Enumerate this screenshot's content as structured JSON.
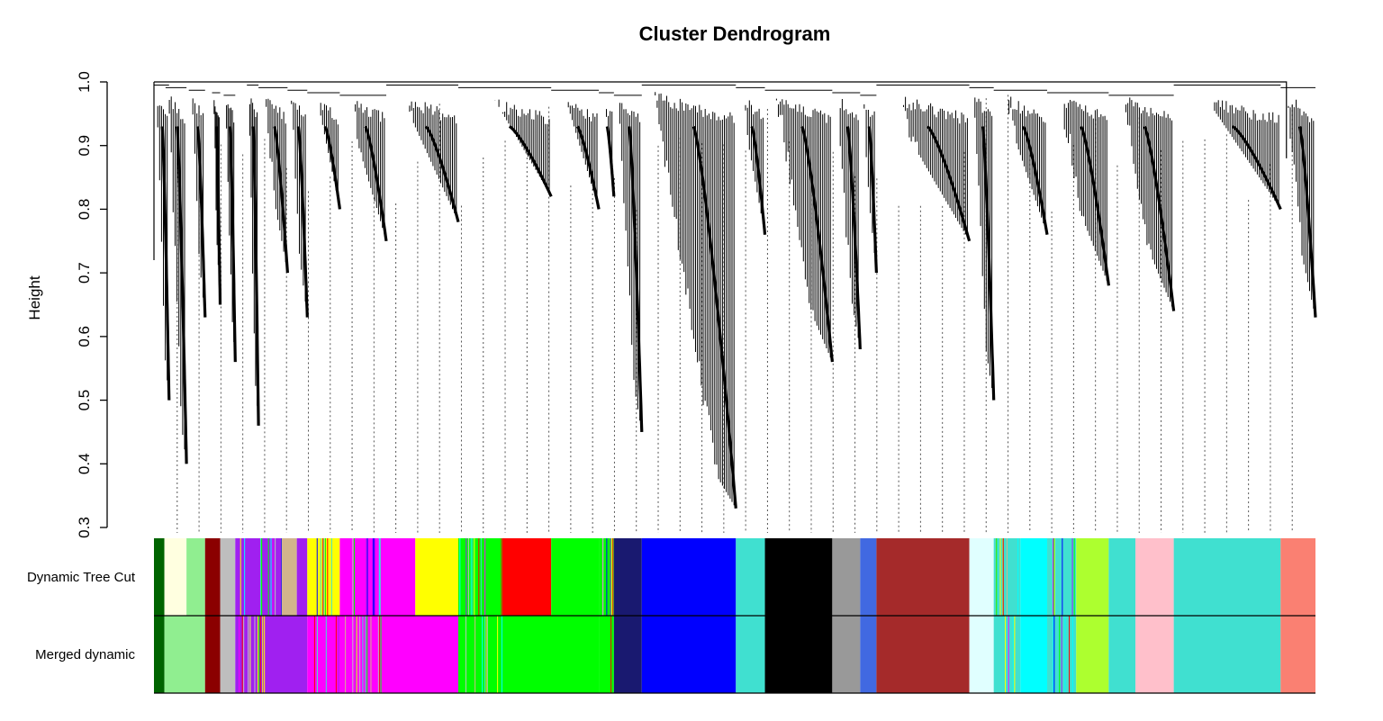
{
  "chart_data": {
    "type": "dendrogram",
    "title": "Cluster Dendrogram",
    "ylabel": "Height",
    "ylim": [
      0.3,
      1.0
    ],
    "yticks": [
      "0.3",
      "0.4",
      "0.5",
      "0.6",
      "0.7",
      "0.8",
      "0.9",
      "1.0"
    ],
    "yticks_values": [
      0.3,
      0.4,
      0.5,
      0.6,
      0.7,
      0.8,
      0.9,
      1.0
    ],
    "n_leaves": 1000,
    "color_rows": [
      {
        "label": "Dynamic Tree Cut",
        "blocks": [
          {
            "from": 0.0,
            "to": 0.9,
            "color": "#006400"
          },
          {
            "from": 0.9,
            "to": 1.3,
            "color": "#ffffe0"
          },
          {
            "from": 1.3,
            "to": 2.8,
            "color": "#ffffe0"
          },
          {
            "from": 2.8,
            "to": 4.4,
            "color": "#90ee90"
          },
          {
            "from": 4.4,
            "to": 5.7,
            "color": "#8b0000"
          },
          {
            "from": 5.7,
            "to": 7.0,
            "color": "#bebebe"
          },
          {
            "from": 7.0,
            "to": 11.0,
            "color": "#a020f0",
            "striped": true
          },
          {
            "from": 11.0,
            "to": 12.3,
            "color": "#d2b48c"
          },
          {
            "from": 12.3,
            "to": 13.2,
            "color": "#a020f0"
          },
          {
            "from": 13.2,
            "to": 16.0,
            "color": "#ffff00",
            "striped": true
          },
          {
            "from": 16.0,
            "to": 20.0,
            "color": "#ff00ff",
            "striped": true
          },
          {
            "from": 20.0,
            "to": 22.5,
            "color": "#ff00ff"
          },
          {
            "from": 22.5,
            "to": 26.2,
            "color": "#ffff00"
          },
          {
            "from": 26.2,
            "to": 30.0,
            "color": "#00ff00",
            "striped": true
          },
          {
            "from": 30.0,
            "to": 34.2,
            "color": "#ff0000"
          },
          {
            "from": 34.2,
            "to": 38.3,
            "color": "#00ff00"
          },
          {
            "from": 38.3,
            "to": 39.6,
            "color": "#00ff00",
            "striped": true
          },
          {
            "from": 39.6,
            "to": 42.0,
            "color": "#191970"
          },
          {
            "from": 42.0,
            "to": 50.1,
            "color": "#0000ff"
          },
          {
            "from": 50.1,
            "to": 52.6,
            "color": "#40e0d0"
          },
          {
            "from": 52.6,
            "to": 58.4,
            "color": "#000000"
          },
          {
            "from": 58.4,
            "to": 60.8,
            "color": "#999999"
          },
          {
            "from": 60.8,
            "to": 62.2,
            "color": "#4169e1"
          },
          {
            "from": 62.2,
            "to": 70.2,
            "color": "#a52a2a"
          },
          {
            "from": 70.2,
            "to": 72.3,
            "color": "#e0ffff"
          },
          {
            "from": 72.3,
            "to": 74.6,
            "color": "#40e0d0",
            "striped": true
          },
          {
            "from": 74.6,
            "to": 76.9,
            "color": "#00ffff"
          },
          {
            "from": 76.9,
            "to": 79.4,
            "color": "#40e0d0",
            "striped": true
          },
          {
            "from": 79.4,
            "to": 82.2,
            "color": "#adff2f"
          },
          {
            "from": 82.2,
            "to": 84.5,
            "color": "#40e0d0"
          },
          {
            "from": 84.5,
            "to": 87.8,
            "color": "#ffc0cb"
          },
          {
            "from": 87.8,
            "to": 97.0,
            "color": "#40e0d0"
          },
          {
            "from": 97.0,
            "to": 100.0,
            "color": "#fa8072"
          }
        ]
      },
      {
        "label": "Merged dynamic",
        "blocks": [
          {
            "from": 0.0,
            "to": 0.9,
            "color": "#006400"
          },
          {
            "from": 0.9,
            "to": 4.4,
            "color": "#90ee90"
          },
          {
            "from": 4.4,
            "to": 5.7,
            "color": "#8b0000"
          },
          {
            "from": 5.7,
            "to": 7.0,
            "color": "#bebebe"
          },
          {
            "from": 7.0,
            "to": 10.0,
            "color": "#a020f0",
            "striped": true
          },
          {
            "from": 10.0,
            "to": 13.2,
            "color": "#a020f0"
          },
          {
            "from": 13.2,
            "to": 20.0,
            "color": "#ff00ff",
            "striped": true
          },
          {
            "from": 20.0,
            "to": 26.2,
            "color": "#ff00ff"
          },
          {
            "from": 26.2,
            "to": 30.0,
            "color": "#00ff00",
            "striped": true
          },
          {
            "from": 30.0,
            "to": 38.3,
            "color": "#00ff00"
          },
          {
            "from": 38.3,
            "to": 39.6,
            "color": "#00ff00",
            "striped": true
          },
          {
            "from": 39.6,
            "to": 42.0,
            "color": "#191970"
          },
          {
            "from": 42.0,
            "to": 50.1,
            "color": "#0000ff"
          },
          {
            "from": 50.1,
            "to": 52.6,
            "color": "#40e0d0"
          },
          {
            "from": 52.6,
            "to": 58.4,
            "color": "#000000"
          },
          {
            "from": 58.4,
            "to": 60.8,
            "color": "#999999"
          },
          {
            "from": 60.8,
            "to": 62.2,
            "color": "#4169e1"
          },
          {
            "from": 62.2,
            "to": 70.2,
            "color": "#a52a2a"
          },
          {
            "from": 70.2,
            "to": 72.3,
            "color": "#e0ffff"
          },
          {
            "from": 72.3,
            "to": 74.6,
            "color": "#40e0d0",
            "striped": true
          },
          {
            "from": 74.6,
            "to": 76.9,
            "color": "#00ffff"
          },
          {
            "from": 76.9,
            "to": 79.4,
            "color": "#40e0d0",
            "striped": true
          },
          {
            "from": 79.4,
            "to": 82.2,
            "color": "#adff2f"
          },
          {
            "from": 82.2,
            "to": 84.5,
            "color": "#40e0d0"
          },
          {
            "from": 84.5,
            "to": 87.8,
            "color": "#ffc0cb"
          },
          {
            "from": 87.8,
            "to": 97.0,
            "color": "#40e0d0"
          },
          {
            "from": 97.0,
            "to": 100.0,
            "color": "#fa8072"
          }
        ]
      }
    ],
    "major_branches": [
      {
        "from": 0.0,
        "to": 1.3,
        "min_height": 0.5
      },
      {
        "from": 1.0,
        "to": 2.8,
        "min_height": 0.4
      },
      {
        "from": 3.0,
        "to": 4.4,
        "min_height": 0.63
      },
      {
        "from": 5.0,
        "to": 5.7,
        "min_height": 0.65
      },
      {
        "from": 6.0,
        "to": 7.0,
        "min_height": 0.56
      },
      {
        "from": 8.0,
        "to": 9.0,
        "min_height": 0.46
      },
      {
        "from": 9.0,
        "to": 11.5,
        "min_height": 0.7
      },
      {
        "from": 11.5,
        "to": 13.2,
        "min_height": 0.63
      },
      {
        "from": 13.2,
        "to": 16.0,
        "min_height": 0.8
      },
      {
        "from": 16.0,
        "to": 20.0,
        "min_height": 0.75
      },
      {
        "from": 20.0,
        "to": 26.2,
        "min_height": 0.78
      },
      {
        "from": 26.2,
        "to": 34.2,
        "min_height": 0.82
      },
      {
        "from": 34.2,
        "to": 38.3,
        "min_height": 0.8
      },
      {
        "from": 38.3,
        "to": 39.6,
        "min_height": 0.82
      },
      {
        "from": 39.6,
        "to": 42.0,
        "min_height": 0.45
      },
      {
        "from": 42.0,
        "to": 50.1,
        "min_height": 0.33
      },
      {
        "from": 50.1,
        "to": 52.6,
        "min_height": 0.76
      },
      {
        "from": 52.6,
        "to": 58.4,
        "min_height": 0.56
      },
      {
        "from": 58.4,
        "to": 60.8,
        "min_height": 0.58
      },
      {
        "from": 60.8,
        "to": 62.2,
        "min_height": 0.7
      },
      {
        "from": 62.2,
        "to": 70.2,
        "min_height": 0.75
      },
      {
        "from": 70.2,
        "to": 72.3,
        "min_height": 0.5
      },
      {
        "from": 72.3,
        "to": 76.9,
        "min_height": 0.76
      },
      {
        "from": 76.9,
        "to": 82.2,
        "min_height": 0.68
      },
      {
        "from": 82.2,
        "to": 87.8,
        "min_height": 0.64
      },
      {
        "from": 87.8,
        "to": 97.0,
        "min_height": 0.8
      },
      {
        "from": 97.0,
        "to": 100.0,
        "min_height": 0.63
      }
    ],
    "colors": {
      "tree": "#000000",
      "axis": "#000000",
      "guide_lines": "#555555",
      "background": "#ffffff"
    }
  }
}
